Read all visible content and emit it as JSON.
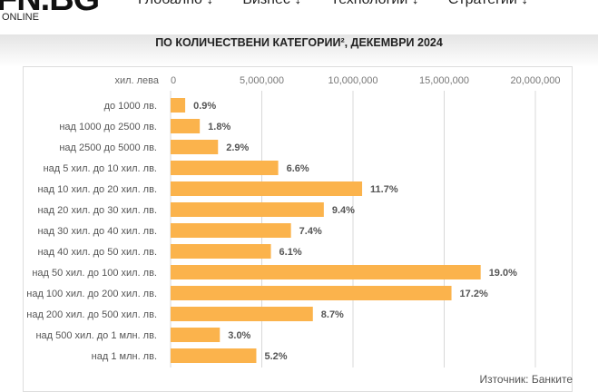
{
  "header": {
    "logo": "FN.BG",
    "logo_sub": "ONLINE",
    "nav": [
      "Глобално ↓",
      "Бизнес ↓",
      "Технологии ↓",
      "Стратегии ↓"
    ]
  },
  "chart_data": {
    "type": "bar",
    "orientation": "horizontal",
    "title": "ПО КОЛИЧЕСТВЕНИ КАТЕГОРИИ², ДЕКЕМВРИ 2024",
    "xlabel": "хил. лева",
    "xlim": [
      0,
      20000000
    ],
    "xticks": [
      "0",
      "5,000,000",
      "10,000,000",
      "15,000,000",
      "20,000,000"
    ],
    "xtick_values": [
      0,
      5000000,
      10000000,
      15000000,
      20000000
    ],
    "grid": true,
    "bar_color": "#fbb34c",
    "categories": [
      "до 1000 лв.",
      "над 1000 до 2500 лв.",
      "над 2500 до 5000 лв.",
      "над 5 хил. до 10 хил. лв.",
      "над 10 хил. до 20 хил. лв.",
      "над 20 хил. до 30 хил. лв.",
      "над 30 хил. до 40 хил. лв.",
      "над 40 хил. до 50 хил. лв.",
      "над 50 хил. до 100 хил. лв.",
      "над 100 хил. до 200 хил. лв.",
      "над 200 хил. до 500 хил. лв.",
      "над 500 хил. до 1 млн. лв.",
      "над 1 млн. лв."
    ],
    "values": [
      800000,
      1600000,
      2600000,
      5900000,
      10500000,
      8400000,
      6600000,
      5500000,
      17000000,
      15400000,
      7800000,
      2700000,
      4700000
    ],
    "data_labels": [
      "0.9%",
      "1.8%",
      "2.9%",
      "6.6%",
      "11.7%",
      "9.4%",
      "7.4%",
      "6.1%",
      "19.0%",
      "17.2%",
      "8.7%",
      "3.0%",
      "5.2%"
    ],
    "source": "Източник: Банките"
  }
}
